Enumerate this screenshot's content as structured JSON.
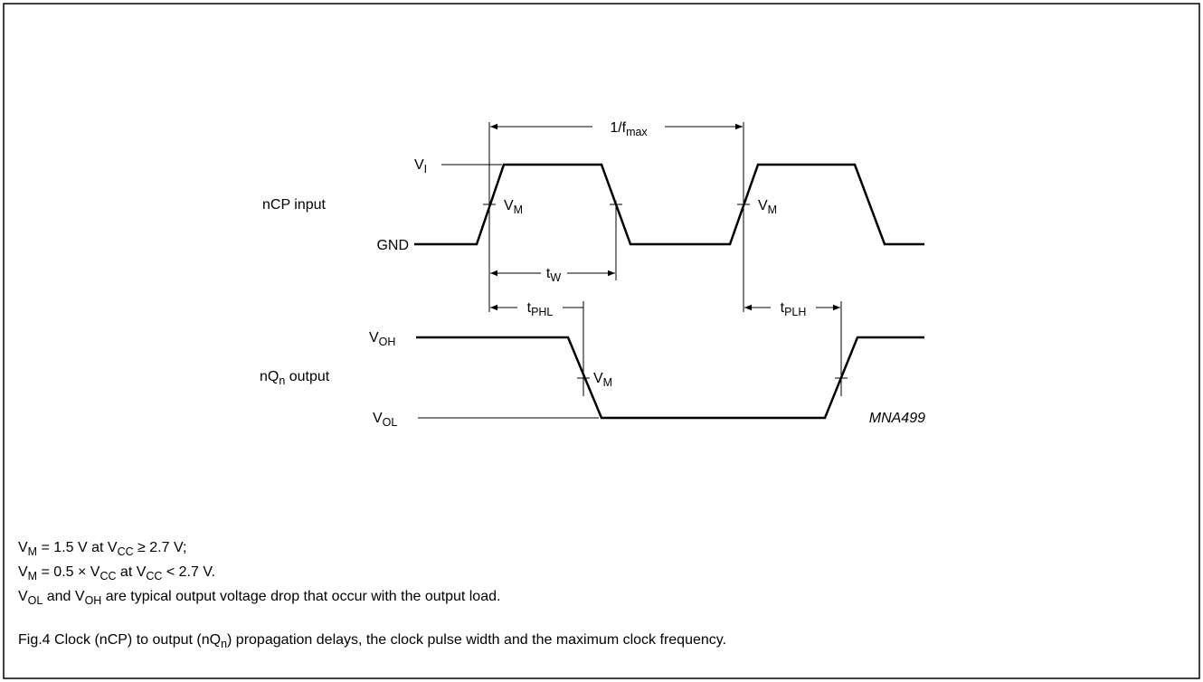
{
  "labels": {
    "period": [
      "1/f",
      "max"
    ],
    "vi": [
      "V",
      "I"
    ],
    "vm_rise1": [
      "V",
      "M"
    ],
    "vm_rise2": [
      "V",
      "M"
    ],
    "vm_out": [
      "V",
      "M"
    ],
    "clock_input": "nCP  input",
    "gnd": "GND",
    "tw": [
      "t",
      "W"
    ],
    "tphl": [
      "t",
      "PHL"
    ],
    "tplh": [
      "t",
      "PLH"
    ],
    "voh": [
      "V",
      "OH"
    ],
    "output": [
      "nQ",
      "n",
      " output"
    ],
    "vol": [
      "V",
      "OL"
    ],
    "figure_code": "MNA499"
  },
  "notes": [
    [
      "V",
      "M",
      " = 1.5 V at V",
      "CC",
      " ≥ 2.7 V;"
    ],
    [
      "V",
      "M",
      " = 0.5 × V",
      "CC",
      " at V",
      "CC",
      " < 2.7 V."
    ],
    [
      "V",
      "OL",
      " and V",
      "OH",
      " are typical output voltage drop that occur with the output load."
    ]
  ],
  "caption": [
    "Fig.4  Clock (nCP) to output (nQ",
    "n",
    ") propagation delays, the clock pulse width and the maximum clock frequency."
  ]
}
